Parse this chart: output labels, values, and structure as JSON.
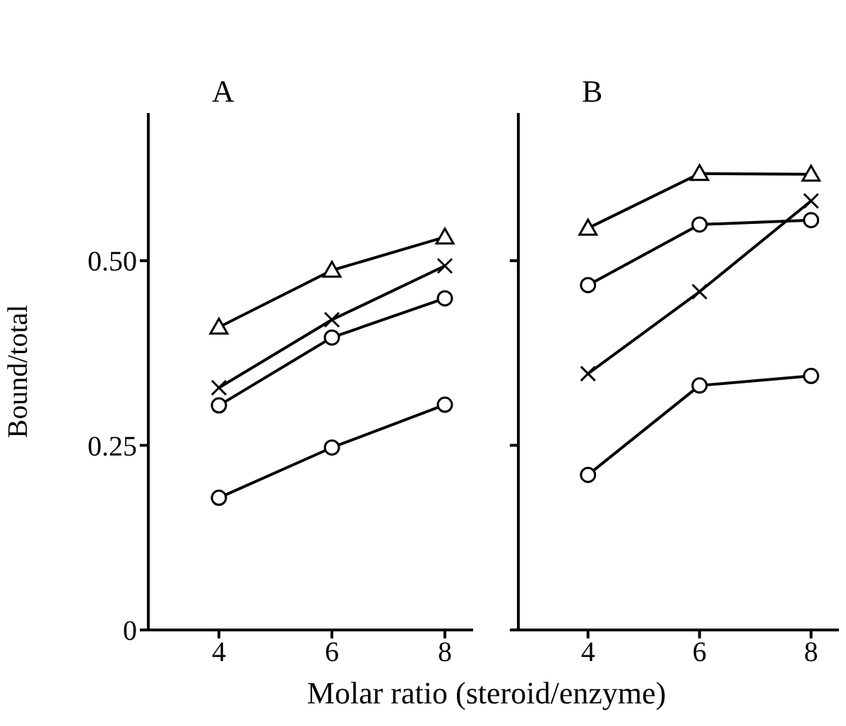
{
  "chart_data": [
    {
      "type": "line",
      "title": "A",
      "xlabel": "Molar ratio (steroid/enzyme)",
      "ylabel": "Bound/total",
      "x": [
        4,
        6,
        8
      ],
      "xlim": [
        2.75,
        8.5
      ],
      "xticks": [
        4,
        6,
        8
      ],
      "ylim": [
        0,
        0.7
      ],
      "yticks": [
        0,
        0.25,
        {
          "value": 0.5,
          "label": "0.50"
        }
      ],
      "grid": false,
      "legend": false,
      "line_style": "solid",
      "series": [
        {
          "color": "#000000",
          "marker": "triangle",
          "values": [
            0.41,
            0.487,
            0.532
          ]
        },
        {
          "color": "#000000",
          "marker": "cross",
          "values": [
            0.328,
            0.42,
            0.493
          ]
        },
        {
          "color": "#000000",
          "marker": "circle",
          "values": [
            0.304,
            0.396,
            0.449
          ]
        },
        {
          "color": "#000000",
          "marker": "circle",
          "values": [
            0.179,
            0.247,
            0.305
          ]
        }
      ]
    },
    {
      "type": "line",
      "title": "B",
      "x": [
        4,
        6,
        8
      ],
      "xlim": [
        2.75,
        8.5
      ],
      "xticks": [
        4,
        6,
        8
      ],
      "ylim": [
        0,
        0.7
      ],
      "yticks": [
        0,
        0.25,
        0.5
      ],
      "tick_labels": "x",
      "grid": false,
      "legend": false,
      "line_style": "solid",
      "series": [
        {
          "color": "#000000",
          "marker": "triangle",
          "values": [
            0.544,
            0.618,
            0.617
          ]
        },
        {
          "color": "#000000",
          "marker": "circle",
          "values": [
            0.467,
            0.549,
            0.555
          ]
        },
        {
          "color": "#000000",
          "marker": "cross",
          "values": [
            0.347,
            0.458,
            0.581
          ]
        },
        {
          "color": "#000000",
          "marker": "circle",
          "values": [
            0.21,
            0.331,
            0.344
          ]
        }
      ]
    }
  ]
}
